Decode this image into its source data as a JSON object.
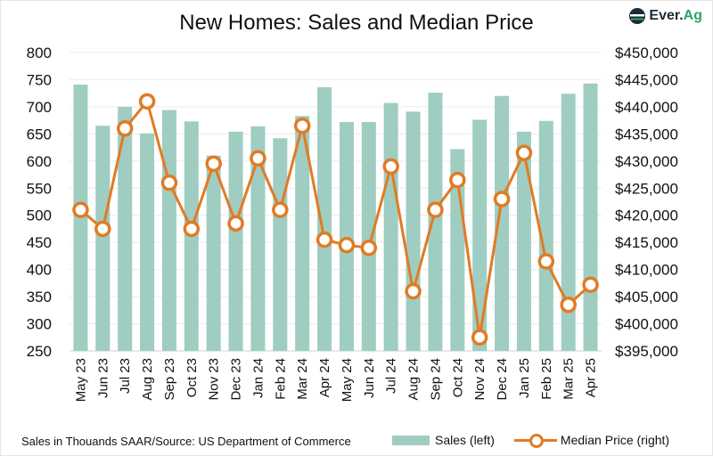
{
  "chart_data": {
    "type": "bar+line",
    "title": "New Homes: Sales and Median Price",
    "categories": [
      "May 23",
      "Jun 23",
      "Jul 23",
      "Aug 23",
      "Sep 23",
      "Oct 23",
      "Nov 23",
      "Dec 23",
      "Jan 24",
      "Feb 24",
      "Mar 24",
      "Apr 24",
      "May 24",
      "Jun 24",
      "Jul 24",
      "Aug 24",
      "Sep 24",
      "Oct 24",
      "Nov 24",
      "Dec 24",
      "Jan 25",
      "Feb 25",
      "Mar 25",
      "Apr 25"
    ],
    "series": [
      {
        "name": "Sales (left)",
        "type": "bar",
        "axis": "left",
        "color": "#9fcdc1",
        "values": [
          741,
          665,
          700,
          651,
          694,
          673,
          610,
          654,
          664,
          642,
          683,
          736,
          672,
          672,
          707,
          691,
          726,
          622,
          676,
          720,
          654,
          674,
          724,
          743
        ]
      },
      {
        "name": "Median Price (right)",
        "type": "line",
        "axis": "right",
        "color": "#e07b24",
        "values": [
          421000,
          417500,
          436000,
          441000,
          426000,
          417500,
          429500,
          418500,
          430500,
          421000,
          436500,
          415500,
          414500,
          414000,
          429000,
          406000,
          421000,
          426500,
          397500,
          423000,
          431500,
          411500,
          403500,
          407200
        ]
      }
    ],
    "ylim_left": [
      250,
      800
    ],
    "yticks_left": [
      "800",
      "750",
      "700",
      "650",
      "600",
      "550",
      "500",
      "450",
      "400",
      "350",
      "300",
      "250"
    ],
    "ylim_right": [
      395000,
      450000
    ],
    "yticks_right": [
      "$450,000",
      "$445,000",
      "$440,000",
      "$435,000",
      "$430,000",
      "$425,000",
      "$420,000",
      "$415,000",
      "$410,000",
      "$405,000",
      "$400,000",
      "$395,000"
    ],
    "grid": true,
    "legend": "bottom-right"
  },
  "source": "Sales in Thouands SAAR/Source: US Department of Commerce",
  "logo": {
    "text_a": "Ever.",
    "text_b": "Ag"
  }
}
